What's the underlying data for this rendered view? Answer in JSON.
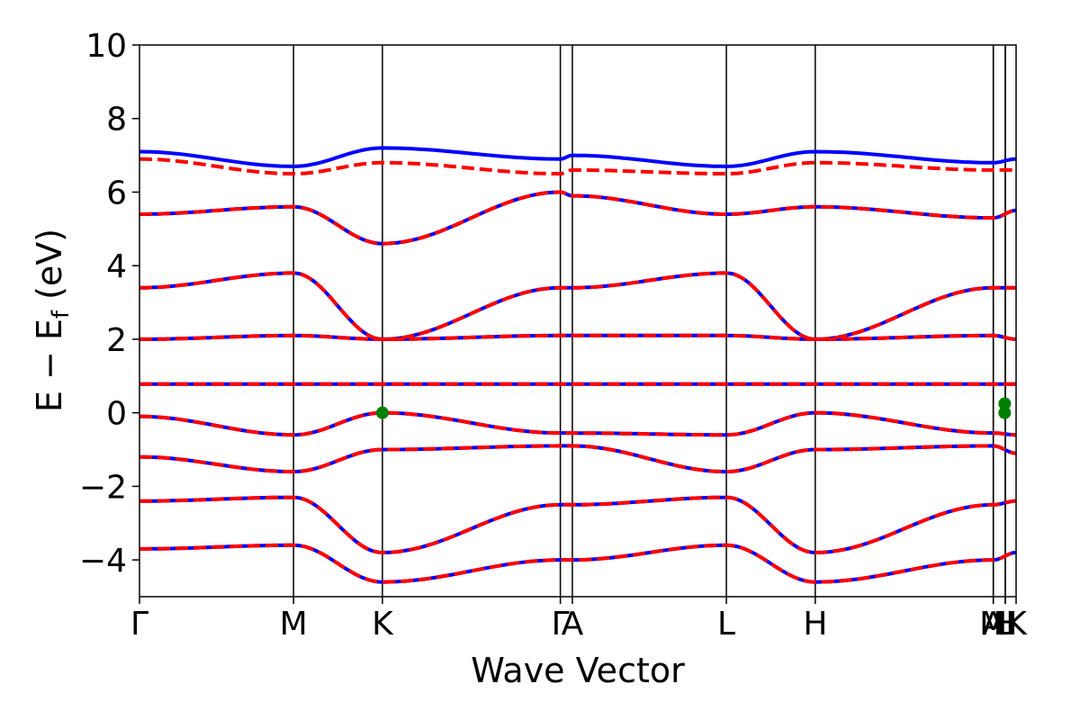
{
  "chart_data": {
    "type": "line",
    "title": "",
    "xlabel": "Wave Vector",
    "ylabel": "E − E",
    "ylabel_subscript": "f",
    "ylabel_unit": " (eV)",
    "ylim": [
      -5,
      10
    ],
    "yticks": [
      -4,
      -2,
      0,
      2,
      4,
      6,
      8,
      10
    ],
    "ytick_labels": [
      "−4",
      "−2",
      "0",
      "2",
      "4",
      "6",
      "8",
      "10"
    ],
    "kpath": [
      {
        "label": "Γ",
        "x": 0.0
      },
      {
        "label": "M",
        "x": 0.1757
      },
      {
        "label": "K",
        "x": 0.2771
      },
      {
        "label": "Γ",
        "x": 0.4801
      },
      {
        "label": "A",
        "x": 0.4938
      },
      {
        "label": "L",
        "x": 0.6695
      },
      {
        "label": "H",
        "x": 0.7709
      },
      {
        "label": "A",
        "x": 0.974
      },
      {
        "label": "M",
        "x": 0.974
      },
      {
        "label": "L",
        "x": 0.9877
      },
      {
        "label": "H",
        "x": 0.9877
      },
      {
        "label": "K",
        "x": 1.0
      }
    ],
    "kpath_tick_labels": [
      "Γ",
      "M",
      "K",
      "Γ",
      "A",
      "L",
      "H",
      "A",
      "M",
      "L",
      "H",
      "K"
    ],
    "grid": false,
    "fermi_markers": [
      {
        "x": 0.2771,
        "y": 0.0
      },
      {
        "x": 0.987,
        "y": 0.0
      },
      {
        "x": 0.987,
        "y": 0.25
      }
    ],
    "series": [
      {
        "style": "solid",
        "color": "#0000ff",
        "bands": [
          {
            "x": [
              0,
              0.1757,
              0.2771,
              0.4801,
              0.4938,
              0.6695,
              0.7709,
              0.974,
              1.0
            ],
            "y": [
              7.1,
              6.7,
              7.2,
              6.9,
              7.0,
              6.7,
              7.1,
              6.8,
              6.9
            ]
          },
          {
            "x": [
              0,
              0.1757,
              0.2771,
              0.4801,
              0.4938,
              0.6695,
              0.7709,
              0.974,
              1.0
            ],
            "y": [
              5.4,
              5.6,
              4.6,
              6.0,
              5.9,
              5.4,
              5.6,
              5.3,
              5.5
            ]
          },
          {
            "x": [
              0,
              0.1757,
              0.2771,
              0.4801,
              0.4938,
              0.6695,
              0.7709,
              0.974,
              1.0
            ],
            "y": [
              3.4,
              3.8,
              2.0,
              3.4,
              3.4,
              3.8,
              2.0,
              3.4,
              3.4
            ]
          },
          {
            "x": [
              0,
              0.1757,
              0.2771,
              0.4801,
              0.4938,
              0.6695,
              0.7709,
              0.974,
              1.0
            ],
            "y": [
              2.0,
              2.1,
              2.0,
              2.1,
              2.1,
              2.1,
              2.0,
              2.1,
              2.0
            ]
          },
          {
            "x": [
              0,
              0.1757,
              0.2771,
              0.4801,
              0.4938,
              0.6695,
              0.7709,
              0.974,
              1.0
            ],
            "y": [
              0.78,
              0.78,
              0.78,
              0.78,
              0.78,
              0.78,
              0.78,
              0.78,
              0.78
            ]
          },
          {
            "x": [
              0,
              0.1757,
              0.2771,
              0.4801,
              0.4938,
              0.6695,
              0.7709,
              0.974,
              1.0
            ],
            "y": [
              -0.1,
              -0.6,
              0.0,
              -0.55,
              -0.55,
              -0.6,
              0.0,
              -0.55,
              -0.6
            ]
          },
          {
            "x": [
              0,
              0.1757,
              0.2771,
              0.4801,
              0.4938,
              0.6695,
              0.7709,
              0.974,
              1.0
            ],
            "y": [
              -1.2,
              -1.6,
              -1.0,
              -0.9,
              -0.9,
              -1.6,
              -1.0,
              -0.9,
              -1.1
            ]
          },
          {
            "x": [
              0,
              0.1757,
              0.2771,
              0.4801,
              0.4938,
              0.6695,
              0.7709,
              0.974,
              1.0
            ],
            "y": [
              -2.4,
              -2.3,
              -3.8,
              -2.5,
              -2.5,
              -2.3,
              -3.8,
              -2.5,
              -2.4
            ]
          },
          {
            "x": [
              0,
              0.1757,
              0.2771,
              0.4801,
              0.4938,
              0.6695,
              0.7709,
              0.974,
              1.0
            ],
            "y": [
              -3.7,
              -3.6,
              -4.6,
              -4.0,
              -4.0,
              -3.6,
              -4.6,
              -4.0,
              -3.8
            ]
          }
        ]
      },
      {
        "style": "dashed",
        "color": "#ff0000",
        "bands": [
          {
            "x": [
              0,
              0.1757,
              0.2771,
              0.4801,
              0.4938,
              0.6695,
              0.7709,
              0.974,
              1.0
            ],
            "y": [
              6.9,
              6.5,
              6.8,
              6.5,
              6.6,
              6.5,
              6.8,
              6.6,
              6.6
            ]
          },
          {
            "x": [
              0,
              0.1757,
              0.2771,
              0.4801,
              0.4938,
              0.6695,
              0.7709,
              0.974,
              1.0
            ],
            "y": [
              5.4,
              5.6,
              4.6,
              6.0,
              5.9,
              5.4,
              5.6,
              5.3,
              5.5
            ]
          },
          {
            "x": [
              0,
              0.1757,
              0.2771,
              0.4801,
              0.4938,
              0.6695,
              0.7709,
              0.974,
              1.0
            ],
            "y": [
              3.4,
              3.8,
              2.0,
              3.4,
              3.4,
              3.8,
              2.0,
              3.4,
              3.4
            ]
          },
          {
            "x": [
              0,
              0.1757,
              0.2771,
              0.4801,
              0.4938,
              0.6695,
              0.7709,
              0.974,
              1.0
            ],
            "y": [
              2.0,
              2.1,
              2.0,
              2.1,
              2.1,
              2.1,
              2.0,
              2.1,
              2.0
            ]
          },
          {
            "x": [
              0,
              0.1757,
              0.2771,
              0.4801,
              0.4938,
              0.6695,
              0.7709,
              0.974,
              1.0
            ],
            "y": [
              0.78,
              0.78,
              0.78,
              0.78,
              0.78,
              0.78,
              0.78,
              0.78,
              0.78
            ]
          },
          {
            "x": [
              0,
              0.1757,
              0.2771,
              0.4801,
              0.4938,
              0.6695,
              0.7709,
              0.974,
              1.0
            ],
            "y": [
              -0.1,
              -0.6,
              0.0,
              -0.55,
              -0.55,
              -0.6,
              0.0,
              -0.55,
              -0.6
            ]
          },
          {
            "x": [
              0,
              0.1757,
              0.2771,
              0.4801,
              0.4938,
              0.6695,
              0.7709,
              0.974,
              1.0
            ],
            "y": [
              -1.2,
              -1.6,
              -1.0,
              -0.9,
              -0.9,
              -1.6,
              -1.0,
              -0.9,
              -1.1
            ]
          },
          {
            "x": [
              0,
              0.1757,
              0.2771,
              0.4801,
              0.4938,
              0.6695,
              0.7709,
              0.974,
              1.0
            ],
            "y": [
              -2.4,
              -2.3,
              -3.8,
              -2.5,
              -2.5,
              -2.3,
              -3.8,
              -2.5,
              -2.4
            ]
          },
          {
            "x": [
              0,
              0.1757,
              0.2771,
              0.4801,
              0.4938,
              0.6695,
              0.7709,
              0.974,
              1.0
            ],
            "y": [
              -3.7,
              -3.6,
              -4.6,
              -4.0,
              -4.0,
              -3.6,
              -4.6,
              -4.0,
              -3.8
            ]
          }
        ]
      }
    ]
  }
}
